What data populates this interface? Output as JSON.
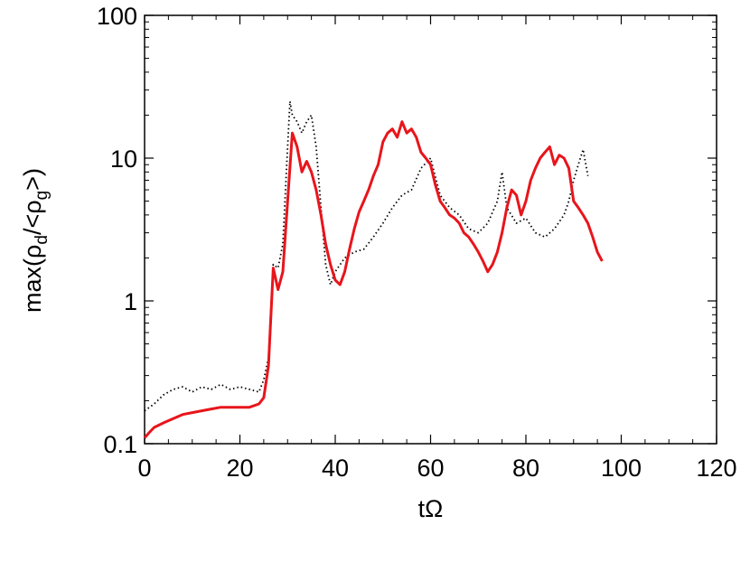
{
  "chart_data": {
    "type": "line",
    "title": "",
    "xlabel": "tΩ",
    "ylabel": {
      "prefix": "max(ρ",
      "sub1": "d",
      "middle": "/<ρ",
      "sub2": "g",
      "suffix": ">)"
    },
    "xlim": [
      0,
      120
    ],
    "ylim": [
      0.1,
      100
    ],
    "yscale": "log",
    "grid": false,
    "x_ticks": [
      0,
      20,
      40,
      60,
      80,
      100,
      120
    ],
    "x_tick_labels": [
      "0",
      "20",
      "40",
      "60",
      "80",
      "100",
      "120"
    ],
    "y_ticks": [
      0.1,
      1,
      10,
      100
    ],
    "y_tick_labels": [
      "0.1",
      "1",
      "10",
      "100"
    ],
    "series": [
      {
        "style": "dotted",
        "color": "#000000",
        "x": [
          0,
          2,
          4,
          6,
          8,
          10,
          12,
          14,
          16,
          18,
          20,
          22,
          24,
          25,
          26,
          26.5,
          27,
          28,
          29,
          30,
          30.5,
          31,
          32,
          33,
          34,
          35,
          36,
          37,
          38,
          39,
          40,
          42,
          44,
          46,
          48,
          50,
          52,
          54,
          56,
          58,
          60,
          62,
          64,
          66,
          68,
          70,
          72,
          74,
          75,
          76,
          78,
          80,
          82,
          84,
          86,
          88,
          89,
          90,
          91,
          92,
          93
        ],
        "y": [
          0.17,
          0.19,
          0.22,
          0.24,
          0.25,
          0.23,
          0.25,
          0.24,
          0.26,
          0.24,
          0.25,
          0.24,
          0.23,
          0.28,
          0.4,
          0.9,
          1.8,
          1.7,
          2.5,
          12,
          25,
          20,
          18,
          15,
          18,
          20,
          12,
          4.5,
          1.8,
          1.3,
          1.6,
          2.0,
          2.2,
          2.3,
          2.8,
          3.5,
          4.5,
          5.5,
          6.0,
          8.5,
          10.0,
          5.5,
          4.5,
          4.0,
          3.2,
          3.0,
          3.5,
          5.0,
          8.0,
          4.5,
          3.5,
          3.8,
          3.0,
          2.8,
          3.2,
          4.0,
          5.0,
          7.0,
          9.0,
          11.5,
          7.5
        ]
      },
      {
        "style": "solid",
        "color": "#e8151b",
        "x": [
          0,
          1,
          2,
          4,
          6,
          8,
          10,
          12,
          14,
          16,
          18,
          20,
          22,
          24,
          25,
          26,
          27,
          28,
          29,
          30,
          31,
          32,
          33,
          34,
          35,
          36,
          37,
          38,
          39,
          40,
          41,
          42,
          43,
          44,
          45,
          46,
          47,
          48,
          49,
          50,
          51,
          52,
          53,
          54,
          55,
          56,
          57,
          58,
          59,
          60,
          61,
          62,
          63,
          64,
          65,
          66,
          67,
          68,
          69,
          70,
          71,
          72,
          73,
          74,
          75,
          76,
          77,
          78,
          79,
          80,
          81,
          82,
          83,
          84,
          85,
          86,
          87,
          88,
          89,
          90,
          91,
          92,
          93,
          94,
          95,
          96
        ],
        "y": [
          0.11,
          0.12,
          0.13,
          0.14,
          0.15,
          0.16,
          0.165,
          0.17,
          0.175,
          0.18,
          0.18,
          0.18,
          0.18,
          0.19,
          0.21,
          0.35,
          1.7,
          1.2,
          1.6,
          5.0,
          15,
          12,
          8.0,
          9.5,
          8.0,
          6.0,
          4.0,
          2.5,
          1.8,
          1.4,
          1.3,
          1.6,
          2.3,
          3.2,
          4.2,
          5.0,
          6.0,
          7.5,
          9.0,
          13.0,
          15.0,
          16.0,
          14.0,
          18.0,
          15.0,
          16.0,
          14.0,
          11.0,
          10.0,
          9.0,
          6.5,
          5.0,
          4.5,
          4.0,
          3.8,
          3.5,
          3.0,
          2.8,
          2.5,
          2.2,
          1.9,
          1.6,
          1.8,
          2.2,
          3.0,
          4.5,
          6.0,
          5.5,
          4.0,
          5.0,
          7.0,
          8.5,
          10.0,
          11.0,
          12.0,
          9.0,
          10.5,
          10.0,
          8.5,
          5.0,
          4.5,
          4.0,
          3.5,
          2.8,
          2.2,
          1.9
        ]
      }
    ]
  }
}
